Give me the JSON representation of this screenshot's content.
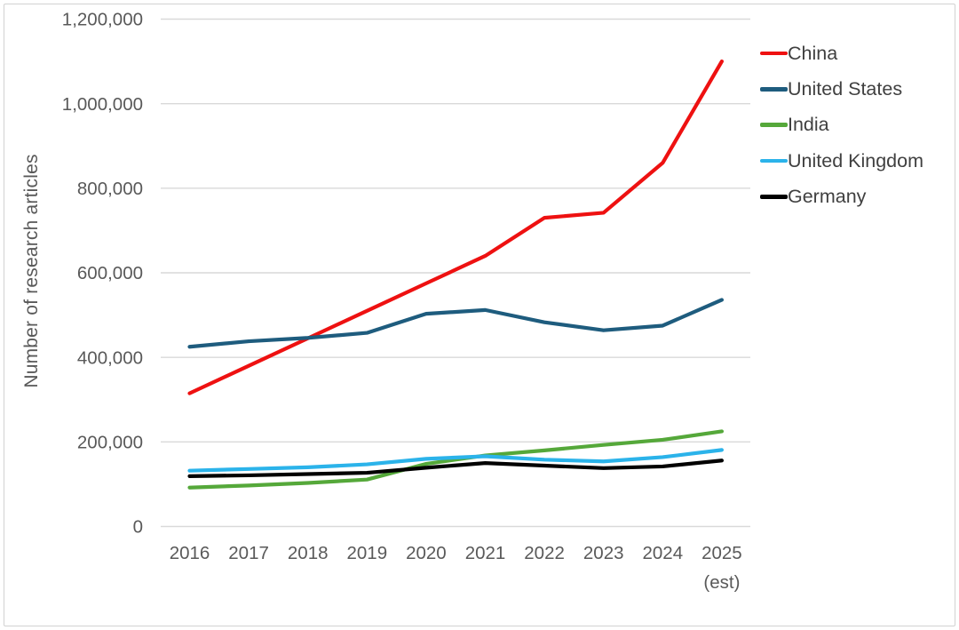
{
  "chart_data": {
    "type": "line",
    "title": "",
    "xlabel": "",
    "ylabel": "Number of research articles",
    "categories": [
      "2016",
      "2017",
      "2018",
      "2019",
      "2020",
      "2021",
      "2022",
      "2023",
      "2024",
      "2025"
    ],
    "last_category_note": "(est)",
    "series": [
      {
        "name": "China",
        "color": "#ee1111",
        "values": [
          315000,
          380000,
          445000,
          510000,
          575000,
          640000,
          730000,
          742000,
          860000,
          1100000
        ]
      },
      {
        "name": "United States",
        "color": "#1e5c7e",
        "values": [
          425000,
          438000,
          446000,
          458000,
          503000,
          512000,
          483000,
          464000,
          475000,
          536000
        ]
      },
      {
        "name": "India",
        "color": "#55a83a",
        "values": [
          92000,
          97000,
          103000,
          111000,
          148000,
          168000,
          180000,
          193000,
          205000,
          225000
        ]
      },
      {
        "name": "United Kingdom",
        "color": "#2bb3ea",
        "values": [
          132000,
          136000,
          140000,
          147000,
          160000,
          166000,
          158000,
          154000,
          164000,
          181000
        ]
      },
      {
        "name": "Germany",
        "color": "#000000",
        "values": [
          119000,
          121000,
          124000,
          127000,
          139000,
          150000,
          144000,
          138000,
          142000,
          156000
        ]
      }
    ],
    "ylim": [
      0,
      1200000
    ],
    "ytick_step": 200000,
    "ytick_labels": [
      "0",
      "200,000",
      "400,000",
      "600,000",
      "800,000",
      "1,000,000",
      "1,200,000"
    ],
    "grid": true,
    "legend_position": "right"
  },
  "style": {
    "grid_color": "#d9d9d9",
    "axis_text_color": "#595959",
    "legend_text_color": "#404040",
    "background_color": "#ffffff",
    "frame_border_color": "#d2d2d2"
  }
}
